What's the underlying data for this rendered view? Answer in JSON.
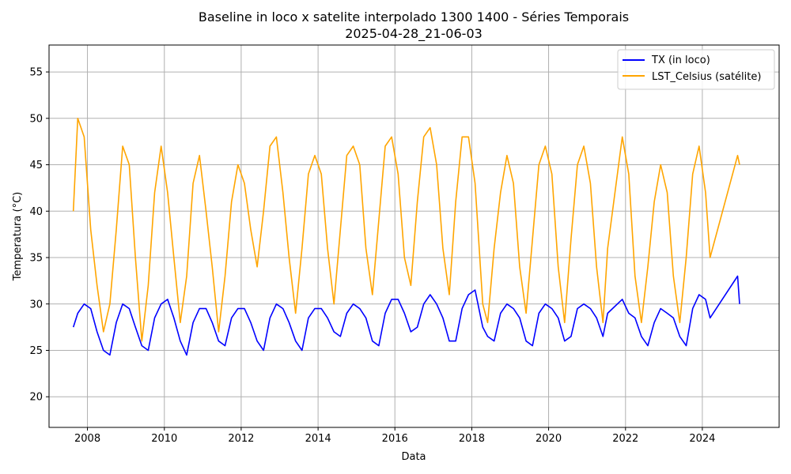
{
  "chart_data": {
    "type": "line",
    "title": "Baseline in loco x satelite interpolado 1300 1400 - Séries Temporais",
    "subtitle": "2025-04-28_21-06-03",
    "xlabel": "Data",
    "ylabel": "Temperatura (°C)",
    "xlim": [
      "2007-01-01",
      "2025-12-31"
    ],
    "ylim": [
      16.7,
      57.9
    ],
    "x_ticks": [
      "2008",
      "2010",
      "2012",
      "2014",
      "2016",
      "2018",
      "2020",
      "2022",
      "2024"
    ],
    "y_ticks": [
      "20",
      "25",
      "30",
      "35",
      "40",
      "45",
      "50",
      "55"
    ],
    "grid": true,
    "legend_position": "top-right",
    "series": [
      {
        "name": "TX (in loco)",
        "color": "#0000ff",
        "x": [
          "2007-08-20",
          "2007-10-01",
          "2007-12-01",
          "2008-02-01",
          "2008-04-01",
          "2008-06-01",
          "2008-08-01",
          "2008-10-01",
          "2008-12-01",
          "2009-02-01",
          "2009-04-01",
          "2009-06-01",
          "2009-08-01",
          "2009-10-01",
          "2009-12-01",
          "2010-02-01",
          "2010-04-01",
          "2010-06-01",
          "2010-08-01",
          "2010-10-01",
          "2010-12-01",
          "2011-02-01",
          "2011-04-01",
          "2011-06-01",
          "2011-08-01",
          "2011-10-01",
          "2011-12-01",
          "2012-02-01",
          "2012-04-01",
          "2012-06-01",
          "2012-08-01",
          "2012-10-01",
          "2012-12-01",
          "2013-02-01",
          "2013-04-01",
          "2013-06-01",
          "2013-08-01",
          "2013-10-01",
          "2013-12-01",
          "2014-02-01",
          "2014-04-01",
          "2014-06-01",
          "2014-08-01",
          "2014-10-01",
          "2014-12-01",
          "2015-02-01",
          "2015-04-01",
          "2015-06-01",
          "2015-08-01",
          "2015-10-01",
          "2015-12-01",
          "2016-02-01",
          "2016-04-01",
          "2016-06-01",
          "2016-08-01",
          "2016-10-01",
          "2016-12-01",
          "2017-02-01",
          "2017-04-01",
          "2017-06-01",
          "2017-08-01",
          "2017-10-01",
          "2017-12-01",
          "2018-02-01",
          "2018-04-15",
          "2018-06-01",
          "2018-08-01",
          "2018-10-01",
          "2018-12-01",
          "2019-02-01",
          "2019-04-01",
          "2019-06-01",
          "2019-08-01",
          "2019-10-01",
          "2019-12-01",
          "2020-02-01",
          "2020-04-01",
          "2020-06-01",
          "2020-08-01",
          "2020-10-01",
          "2020-12-01",
          "2021-02-01",
          "2021-04-01",
          "2021-06-01",
          "2021-07-15",
          "2021-12-01",
          "2022-02-01",
          "2022-04-01",
          "2022-06-01",
          "2022-08-01",
          "2022-10-01",
          "2022-12-01",
          "2023-02-01",
          "2023-04-01",
          "2023-06-01",
          "2023-08-01",
          "2023-10-01",
          "2023-12-01",
          "2024-02-01",
          "2024-03-15",
          "2024-12-01",
          "2024-12-20"
        ],
        "y": [
          27.5,
          29.0,
          30.0,
          29.5,
          27.0,
          25.0,
          24.5,
          28.0,
          30.0,
          29.5,
          27.5,
          25.5,
          25.0,
          28.5,
          30.0,
          30.5,
          28.5,
          26.0,
          24.5,
          28.0,
          29.5,
          29.5,
          28.0,
          26.0,
          25.5,
          28.5,
          29.5,
          29.5,
          28.0,
          26.0,
          25.0,
          28.5,
          30.0,
          29.5,
          28.0,
          26.0,
          25.0,
          28.5,
          29.5,
          29.5,
          28.5,
          27.0,
          26.5,
          29.0,
          30.0,
          29.5,
          28.5,
          26.0,
          25.5,
          29.0,
          30.5,
          30.5,
          29.0,
          27.0,
          27.5,
          30.0,
          31.0,
          30.0,
          28.5,
          26.0,
          26.0,
          29.5,
          31.0,
          31.5,
          27.5,
          26.5,
          26.0,
          29.0,
          30.0,
          29.5,
          28.5,
          26.0,
          25.5,
          29.0,
          30.0,
          29.5,
          28.5,
          26.0,
          26.5,
          29.5,
          30.0,
          29.5,
          28.5,
          26.5,
          29.0,
          30.5,
          29.0,
          28.5,
          26.5,
          25.5,
          28.0,
          29.5,
          29.0,
          28.5,
          26.5,
          25.5,
          29.5,
          31.0,
          30.5,
          28.5,
          33.0,
          30.0
        ]
      },
      {
        "name": "LST_Celsius (satélite)",
        "color": "#ffa500",
        "x": [
          "2007-08-20",
          "2007-10-01",
          "2007-12-01",
          "2008-02-01",
          "2008-04-01",
          "2008-06-01",
          "2008-08-01",
          "2008-10-01",
          "2008-12-01",
          "2009-02-01",
          "2009-04-01",
          "2009-06-01",
          "2009-08-01",
          "2009-10-01",
          "2009-12-01",
          "2010-02-01",
          "2010-04-01",
          "2010-06-01",
          "2010-08-01",
          "2010-10-01",
          "2010-12-01",
          "2011-02-01",
          "2011-04-01",
          "2011-06-01",
          "2011-08-01",
          "2011-10-01",
          "2011-12-01",
          "2012-02-01",
          "2012-04-01",
          "2012-06-01",
          "2012-08-01",
          "2012-10-01",
          "2012-12-01",
          "2013-02-01",
          "2013-04-01",
          "2013-06-01",
          "2013-08-01",
          "2013-10-01",
          "2013-12-01",
          "2014-02-01",
          "2014-04-01",
          "2014-06-01",
          "2014-08-01",
          "2014-10-01",
          "2014-12-01",
          "2015-02-01",
          "2015-04-01",
          "2015-06-01",
          "2015-08-01",
          "2015-10-01",
          "2015-12-01",
          "2016-02-01",
          "2016-04-01",
          "2016-06-01",
          "2016-08-01",
          "2016-10-01",
          "2016-12-01",
          "2017-02-01",
          "2017-04-01",
          "2017-06-01",
          "2017-08-01",
          "2017-10-01",
          "2017-12-01",
          "2018-02-01",
          "2018-04-15",
          "2018-06-01",
          "2018-08-01",
          "2018-10-01",
          "2018-12-01",
          "2019-02-01",
          "2019-04-01",
          "2019-06-01",
          "2019-08-01",
          "2019-10-01",
          "2019-12-01",
          "2020-02-01",
          "2020-04-01",
          "2020-06-01",
          "2020-08-01",
          "2020-10-01",
          "2020-12-01",
          "2021-02-01",
          "2021-04-01",
          "2021-06-01",
          "2021-07-15",
          "2021-12-01",
          "2022-02-01",
          "2022-04-01",
          "2022-06-01",
          "2022-08-01",
          "2022-10-01",
          "2022-12-01",
          "2023-02-01",
          "2023-04-01",
          "2023-06-01",
          "2023-08-01",
          "2023-10-01",
          "2023-12-01",
          "2024-02-01",
          "2024-03-15",
          "2024-12-01",
          "2024-12-20"
        ],
        "y": [
          40.0,
          50.0,
          48.0,
          38.0,
          32.0,
          27.0,
          30.0,
          38.0,
          47.0,
          45.0,
          35.0,
          26.0,
          32.0,
          42.0,
          47.0,
          42.0,
          35.0,
          28.0,
          33.0,
          43.0,
          46.0,
          40.0,
          34.0,
          27.0,
          33.0,
          41.0,
          45.0,
          43.0,
          38.0,
          34.0,
          40.0,
          47.0,
          48.0,
          42.0,
          35.0,
          29.0,
          36.0,
          44.0,
          46.0,
          44.0,
          36.0,
          30.0,
          38.0,
          46.0,
          47.0,
          45.0,
          36.0,
          31.0,
          39.0,
          47.0,
          48.0,
          44.0,
          35.0,
          32.0,
          41.0,
          48.0,
          49.0,
          45.0,
          36.0,
          31.0,
          41.0,
          48.0,
          48.0,
          43.0,
          30.0,
          28.0,
          36.0,
          42.0,
          46.0,
          43.0,
          34.0,
          29.0,
          37.0,
          45.0,
          47.0,
          44.0,
          34.0,
          28.0,
          37.0,
          45.0,
          47.0,
          43.0,
          34.0,
          28.0,
          36.0,
          48.0,
          44.0,
          33.0,
          28.0,
          34.0,
          41.0,
          45.0,
          42.0,
          33.0,
          28.0,
          35.0,
          44.0,
          47.0,
          42.0,
          35.0,
          46.0,
          45.0
        ]
      }
    ]
  }
}
